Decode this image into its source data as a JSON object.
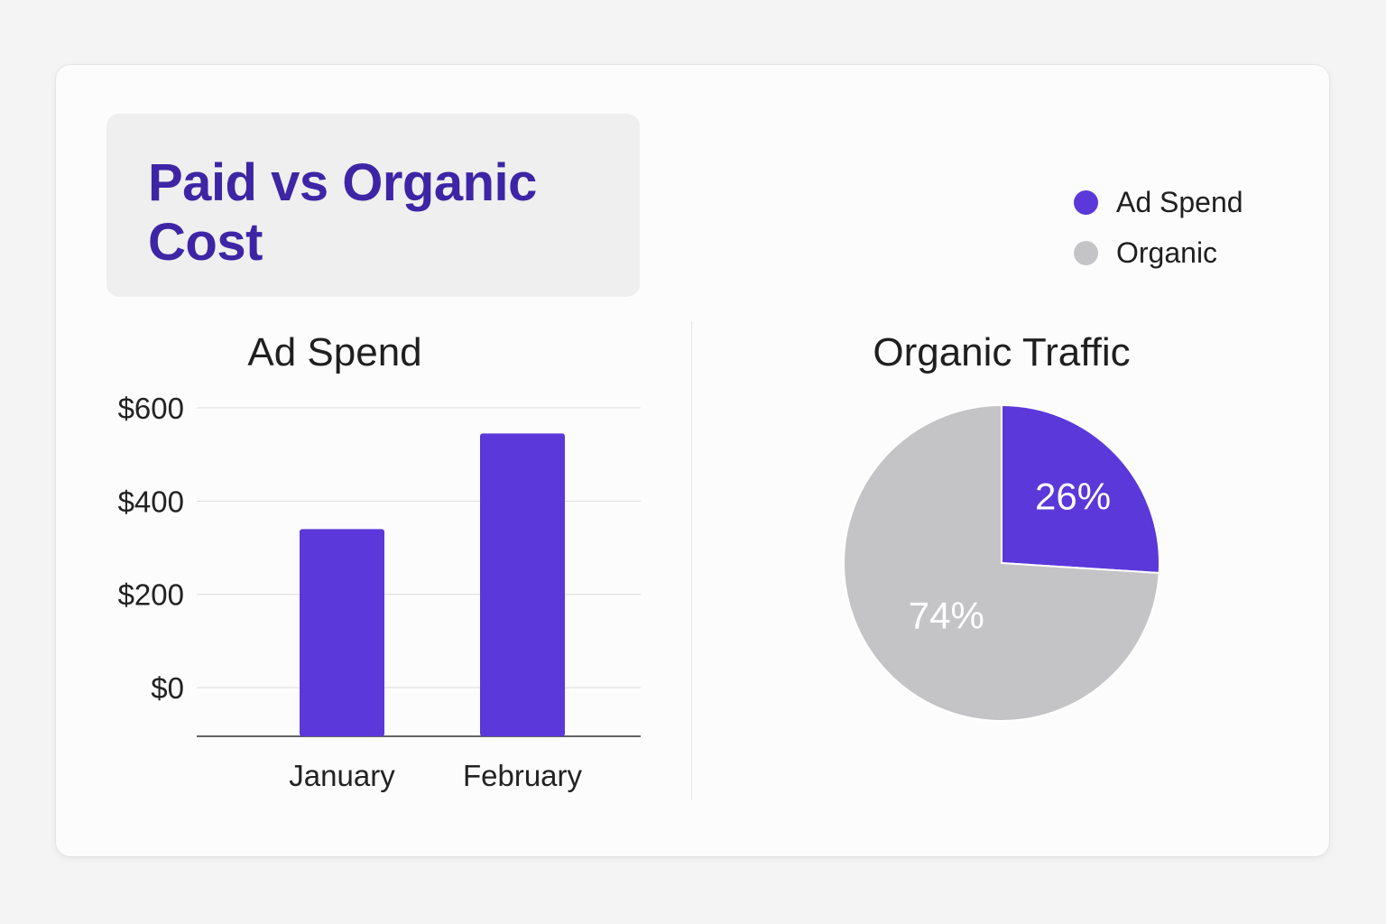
{
  "title": "Paid vs Organic Cost",
  "legend": [
    {
      "label": "Ad Spend",
      "color": "#5b38d9"
    },
    {
      "label": "Organic",
      "color": "#c4c3c5"
    }
  ],
  "colors": {
    "accent": "#5b38d9",
    "muted": "#c4c3c5",
    "title": "#3d25a6"
  },
  "chart_data": [
    {
      "type": "bar",
      "title": "Ad Spend",
      "categories": [
        "January",
        "February"
      ],
      "values": [
        340,
        545
      ],
      "y_ticks": [
        "$0",
        "$200",
        "$400",
        "$600"
      ],
      "ylim": [
        0,
        600
      ],
      "grid": true,
      "color": "#5b38d9"
    },
    {
      "type": "pie",
      "title": "Organic Traffic",
      "slices": [
        {
          "label": "Ad Spend",
          "value": 26,
          "display": "26%",
          "color": "#5b38d9"
        },
        {
          "label": "Organic",
          "value": 74,
          "display": "74%",
          "color": "#c4c3c5"
        }
      ]
    }
  ]
}
